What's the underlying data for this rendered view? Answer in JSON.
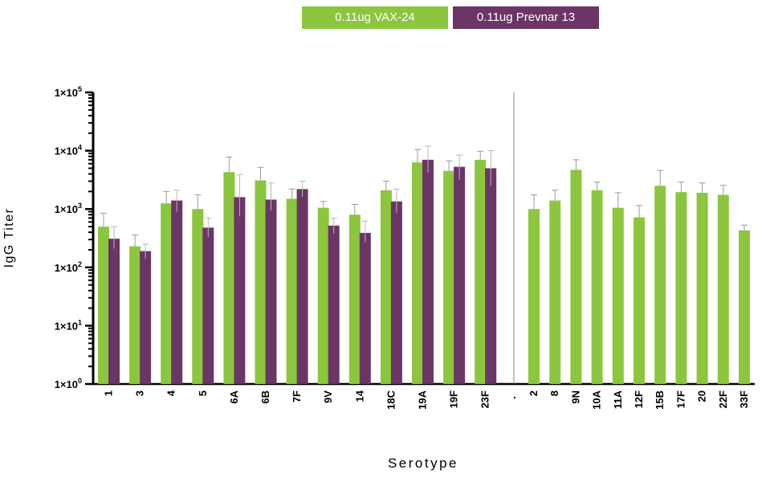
{
  "chart_data": {
    "type": "bar",
    "xlabel": "Serotype",
    "ylabel": "IgG Titer",
    "yscale": "log",
    "ylim": [
      1,
      100000
    ],
    "y_ticks": [
      {
        "value": 1,
        "mantissa": "1",
        "exponent": "0"
      },
      {
        "value": 10,
        "mantissa": "1",
        "exponent": "1"
      },
      {
        "value": 100,
        "mantissa": "1",
        "exponent": "2"
      },
      {
        "value": 1000,
        "mantissa": "1",
        "exponent": "3"
      },
      {
        "value": 10000,
        "mantissa": "1",
        "exponent": "4"
      },
      {
        "value": 100000,
        "mantissa": "1",
        "exponent": "5"
      }
    ],
    "series": [
      {
        "name": "0.11ug VAX-24",
        "color": "#8cc63f",
        "categories": [
          "1",
          "3",
          "4",
          "5",
          "6A",
          "6B",
          "7F",
          "9V",
          "14",
          "18C",
          "19A",
          "19F",
          "23F",
          "2",
          "8",
          "9N",
          "10A",
          "11A",
          "12F",
          "15B",
          "17F",
          "20",
          "22F",
          "33F"
        ],
        "values": [
          500,
          230,
          1250,
          1000,
          4300,
          3100,
          1500,
          1050,
          800,
          2100,
          6300,
          4500,
          7000,
          1000,
          1400,
          4700,
          2100,
          1050,
          720,
          2500,
          1950,
          1900,
          1750,
          430
        ],
        "error_upper": [
          850,
          360,
          2000,
          1750,
          7800,
          5200,
          2200,
          1350,
          1200,
          3000,
          10500,
          6700,
          9800,
          1750,
          2100,
          7000,
          2900,
          1900,
          1150,
          4600,
          2900,
          2800,
          2550,
          530
        ]
      },
      {
        "name": "0.11ug Prevnar 13",
        "color": "#6b3566",
        "categories": [
          "1",
          "3",
          "4",
          "5",
          "6A",
          "6B",
          "7F",
          "9V",
          "14",
          "18C",
          "19A",
          "19F",
          "23F"
        ],
        "values": [
          310,
          190,
          1400,
          480,
          1600,
          1450,
          2200,
          520,
          390,
          1350,
          7000,
          5300,
          5000
        ],
        "error_upper": [
          500,
          250,
          2100,
          700,
          3900,
          2800,
          3000,
          700,
          620,
          2200,
          12000,
          8400,
          10000
        ],
        "error_lower": [
          210,
          140,
          900,
          330,
          750,
          950,
          1600,
          380,
          270,
          850,
          4200,
          3200,
          2500
        ]
      }
    ],
    "group1": [
      "1",
      "3",
      "4",
      "5",
      "6A",
      "6B",
      "7F",
      "9V",
      "14",
      "18C",
      "19A",
      "19F",
      "23F"
    ],
    "group2": [
      "2",
      "8",
      "9N",
      "10A",
      "11A",
      "12F",
      "15B",
      "17F",
      "20",
      "22F",
      "33F"
    ],
    "separator_label": ".",
    "grid": false,
    "legend_position": "top-center"
  }
}
